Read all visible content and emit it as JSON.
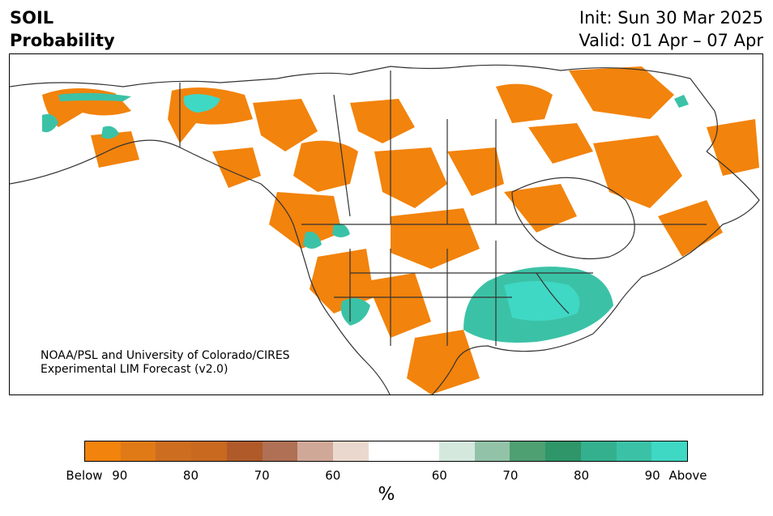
{
  "header": {
    "variable": "SOIL",
    "product": "Probability",
    "init": "Init: Sun 30 Mar 2025",
    "valid": "Valid: 01 Apr – 07 Apr"
  },
  "credit": {
    "line1": "NOAA/PSL and University of Colorado/CIRES",
    "line2": "Experimental LIM Forecast (v2.0)"
  },
  "colorbar": {
    "unit_label": "%",
    "colors": [
      "#f2830c",
      "#e07a16",
      "#cc6d20",
      "#c8691f",
      "#b05a2a",
      "#b07055",
      "#d0a898",
      "#ead8ce",
      "#ffffff",
      "#ffffff",
      "#d4e8de",
      "#92c2a8",
      "#4e9f72",
      "#2e9668",
      "#34b08e",
      "#3bc2a6",
      "#3fd8c4"
    ],
    "tick_labels": [
      "Below",
      "90",
      "80",
      "70",
      "60",
      "60",
      "70",
      "80",
      "90",
      "Above"
    ]
  },
  "map": {
    "below_color": "#f2830c",
    "above_color": "#3fd8c4",
    "outline_color": "#333333"
  }
}
